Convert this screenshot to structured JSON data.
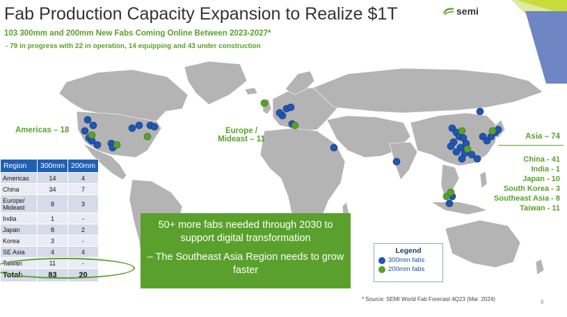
{
  "slide": {
    "title": "Fab Production Capacity Expansion to Realize $1T",
    "subtitle": "103 300mm and 200mm New Fabs Coming Online Between 2023-2027*",
    "subtitle2": "-  79 in progress with 22 in operation, 14 equipping and 43 under construction",
    "logo_text": "semi",
    "page_number": "6"
  },
  "regions": {
    "americas": "Americas – 18",
    "europe_line1": "Europe /",
    "europe_line2": "Mideast – 11",
    "asia_title": "Asia – 74",
    "asia_items": [
      "China - 41",
      "India - 1",
      "Japan - 10",
      "South Korea - 3",
      "Southeast Asia - 8",
      "Taiwan - 11"
    ]
  },
  "table": {
    "headers": [
      "Region",
      "300mm",
      "200mm"
    ],
    "rows": [
      {
        "region": "Americas",
        "mm300": "14",
        "mm200": "4"
      },
      {
        "region": "China",
        "mm300": "34",
        "mm200": "7"
      },
      {
        "region": "Europe/ Mideast",
        "mm300": "8",
        "mm200": "3"
      },
      {
        "region": "India",
        "mm300": "1",
        "mm200": "-"
      },
      {
        "region": "Japan",
        "mm300": "8",
        "mm200": "2"
      },
      {
        "region": "Korea",
        "mm300": "3",
        "mm200": "-"
      },
      {
        "region": "SE Asia",
        "mm300": "4",
        "mm200": "4"
      },
      {
        "region": "Taiwan",
        "mm300": "11",
        "mm200": "-"
      }
    ],
    "total": {
      "label": "Total:",
      "mm300": "83",
      "mm200": "20"
    }
  },
  "callout": {
    "line1": "50+ more fabs needed through 2030 to support digital transformation",
    "line2": "– The Southeast Asia Region needs to grow faster"
  },
  "legend": {
    "title": "Legend",
    "item_300": "300mm fabs",
    "item_200": "200mm fabs",
    "color_300": "#1f56b5",
    "color_200": "#5aa02c"
  },
  "source": "* Source: SEMI World Fab Forecast 4Q23 (Mar. 2024)",
  "colors": {
    "accent_green": "#5aa02c",
    "table_header": "#1f60b5",
    "corner_blue": "#6e86c4",
    "corner_lime": "#c8dd3a"
  }
}
